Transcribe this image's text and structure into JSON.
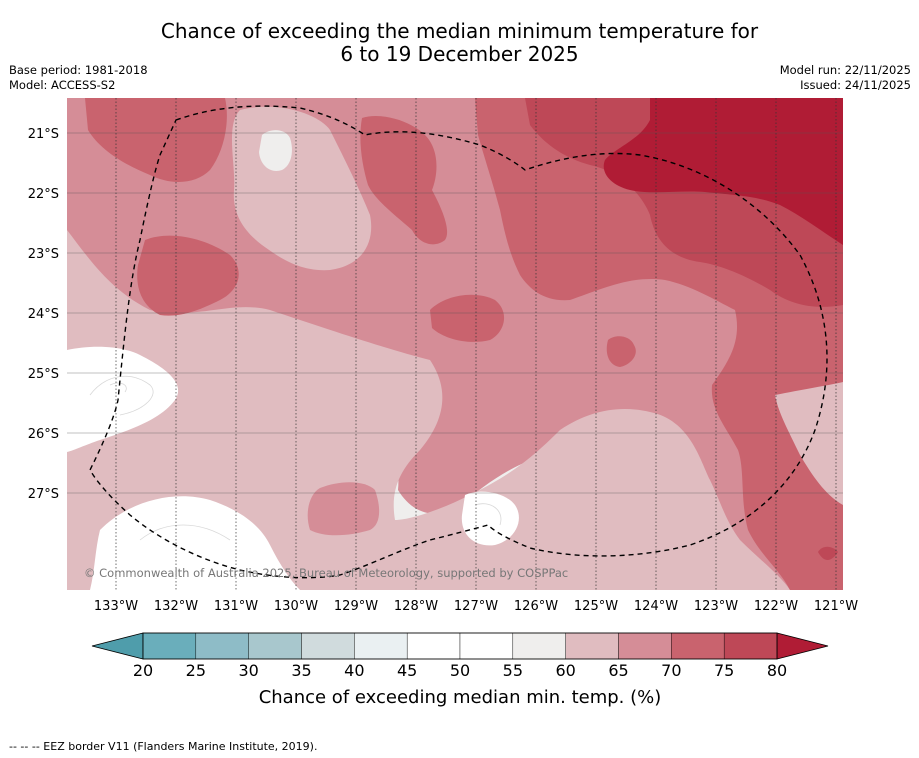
{
  "title": {
    "line1": "Chance of exceeding the median minimum temperature for",
    "line2": "6 to 19 December 2025"
  },
  "meta_left": {
    "base_period": "Base period: 1981-2018",
    "model": "Model: ACCESS-S2"
  },
  "meta_right": {
    "model_run": "Model run: 22/11/2025",
    "issued": "Issued: 24/11/2025"
  },
  "map": {
    "lat_labels": [
      "21°S",
      "22°S",
      "23°S",
      "24°S",
      "25°S",
      "26°S",
      "27°S"
    ],
    "lon_labels": [
      "133°W",
      "132°W",
      "131°W",
      "130°W",
      "129°W",
      "128°W",
      "127°W",
      "126°W",
      "125°W",
      "124°W",
      "123°W",
      "122°W",
      "121°W"
    ],
    "copyright": "© Commonwealth of Australia 2025, Bureau of Meteorology, supported by COSPPac"
  },
  "colorbar": {
    "ticks": [
      "20",
      "25",
      "30",
      "35",
      "40",
      "45",
      "50",
      "55",
      "60",
      "65",
      "70",
      "75",
      "80"
    ],
    "colors": [
      "#6aaebb",
      "#8ebcc7",
      "#a8c7cd",
      "#d0dbdd",
      "#eaf0f2",
      "#ffffff",
      "#ffffff",
      "#efeeed",
      "#e0bcc0",
      "#d58d97",
      "#c9636e",
      "#be4857"
    ],
    "under_color": "#4f9dab",
    "over_color": "#b01c35",
    "label": "Chance of exceeding median min. temp. (%)"
  },
  "legend_footer": "--  --  -- EEZ border V11 (Flanders Marine Institute, 2019)."
}
